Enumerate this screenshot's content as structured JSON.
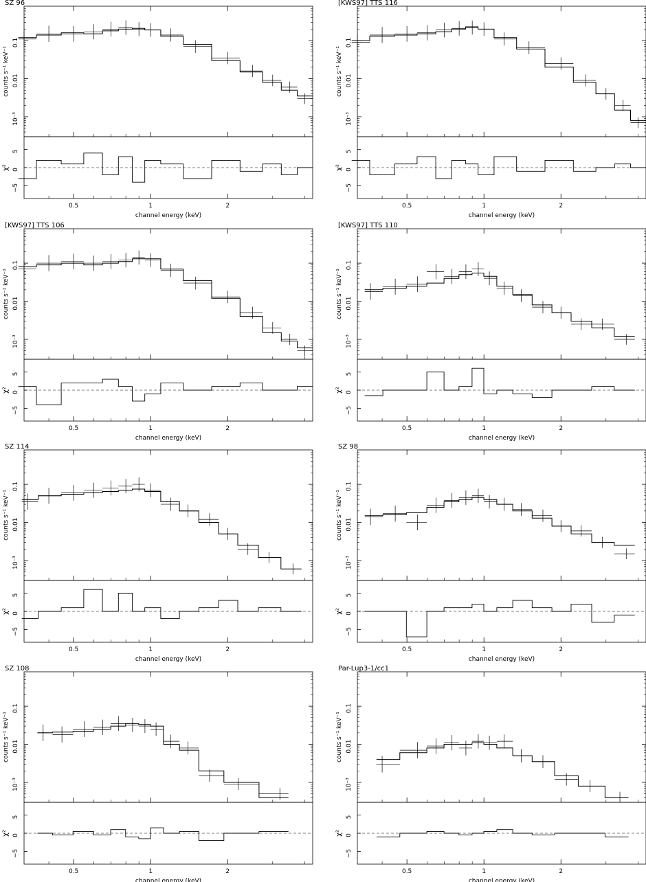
{
  "figure": {
    "xlabel": "channel energy (keV)",
    "ylabel_top": "counts s⁻¹ keV⁻¹",
    "ylabel_bottom": "χ²",
    "xticks": [
      "0.5",
      "1",
      "2"
    ],
    "yticks_top": [
      "10⁻³",
      "0.01",
      "0.1"
    ],
    "yticks_bottom": [
      "5",
      "0",
      "−5"
    ]
  },
  "chart_data": [
    {
      "type": "scatter",
      "title": "SZ 96",
      "x": [
        0.32,
        0.4,
        0.5,
        0.6,
        0.7,
        0.8,
        0.9,
        1.0,
        1.2,
        1.5,
        2.0,
        2.5,
        3.0,
        3.5,
        4.0
      ],
      "model": [
        0.12,
        0.14,
        0.16,
        0.15,
        0.18,
        0.2,
        0.21,
        0.19,
        0.13,
        0.08,
        0.03,
        0.015,
        0.008,
        0.005,
        0.0035
      ],
      "data": [
        0.11,
        0.15,
        0.15,
        0.17,
        0.2,
        0.22,
        0.2,
        0.19,
        0.14,
        0.07,
        0.035,
        0.016,
        0.009,
        0.006,
        0.003
      ],
      "residuals": [
        -3,
        2,
        1,
        4,
        -2,
        3,
        -4,
        2,
        1,
        -3,
        2,
        -1,
        1,
        -2,
        0
      ],
      "xlim": [
        0.32,
        4.3
      ],
      "ylim": [
        0.0003,
        0.8
      ],
      "res_ylim": [
        -8.5,
        8.5
      ]
    },
    {
      "type": "scatter",
      "title": "[KWS97] TTS 116",
      "x": [
        0.32,
        0.4,
        0.5,
        0.6,
        0.7,
        0.8,
        0.9,
        1.0,
        1.2,
        1.5,
        2.0,
        2.5,
        3.0,
        3.5,
        4.0
      ],
      "model": [
        0.1,
        0.13,
        0.14,
        0.15,
        0.17,
        0.2,
        0.23,
        0.2,
        0.12,
        0.06,
        0.02,
        0.008,
        0.004,
        0.0015,
        0.0008
      ],
      "data": [
        0.09,
        0.14,
        0.15,
        0.16,
        0.19,
        0.21,
        0.22,
        0.2,
        0.11,
        0.065,
        0.025,
        0.009,
        0.004,
        0.002,
        0.0007
      ],
      "residuals": [
        2,
        -2,
        1,
        3,
        -3,
        2,
        1,
        -2,
        3,
        -1,
        2,
        -1,
        0,
        1,
        0
      ],
      "xlim": [
        0.32,
        4.3
      ],
      "ylim": [
        0.0003,
        0.8
      ],
      "res_ylim": [
        -8.5,
        8.5
      ]
    },
    {
      "type": "scatter",
      "title": "[KWS97] TTS 106",
      "x": [
        0.32,
        0.4,
        0.5,
        0.6,
        0.7,
        0.8,
        0.9,
        1.0,
        1.2,
        1.5,
        2.0,
        2.5,
        3.0,
        3.5,
        4.0
      ],
      "model": [
        0.08,
        0.09,
        0.1,
        0.09,
        0.1,
        0.11,
        0.13,
        0.13,
        0.07,
        0.035,
        0.012,
        0.004,
        0.0015,
        0.0009,
        0.0006
      ],
      "data": [
        0.07,
        0.1,
        0.11,
        0.1,
        0.11,
        0.12,
        0.14,
        0.12,
        0.065,
        0.03,
        0.013,
        0.005,
        0.002,
        0.001,
        0.0005
      ],
      "residuals": [
        1,
        -4,
        2,
        2,
        3,
        1,
        -3,
        -1,
        2,
        0,
        1,
        2,
        0,
        0,
        1
      ],
      "xlim": [
        0.32,
        4.3
      ],
      "ylim": [
        0.0003,
        0.8
      ],
      "res_ylim": [
        -8.5,
        8.5
      ]
    },
    {
      "type": "scatter",
      "title": "[KWS97] TTS 110",
      "x": [
        0.36,
        0.45,
        0.55,
        0.65,
        0.75,
        0.85,
        0.95,
        1.05,
        1.2,
        1.4,
        1.7,
        2.0,
        2.4,
        2.9,
        3.6
      ],
      "model": [
        0.02,
        0.022,
        0.025,
        0.03,
        0.04,
        0.05,
        0.055,
        0.045,
        0.025,
        0.015,
        0.008,
        0.005,
        0.003,
        0.002,
        0.0012
      ],
      "data": [
        0.018,
        0.024,
        0.028,
        0.06,
        0.045,
        0.06,
        0.07,
        0.04,
        0.022,
        0.014,
        0.007,
        0.005,
        0.0025,
        0.0025,
        0.001
      ],
      "residuals": [
        -1.5,
        0,
        0,
        5,
        0,
        1,
        6,
        -1,
        0,
        -1,
        -2,
        0,
        0,
        1,
        0
      ],
      "xlim": [
        0.32,
        4.3
      ],
      "ylim": [
        0.0003,
        0.8
      ],
      "res_ylim": [
        -8.5,
        8.5
      ]
    },
    {
      "type": "scatter",
      "title": "SZ 114",
      "x": [
        0.33,
        0.4,
        0.5,
        0.6,
        0.7,
        0.8,
        0.9,
        1.0,
        1.2,
        1.4,
        1.7,
        2.0,
        2.4,
        2.9,
        3.6
      ],
      "model": [
        0.04,
        0.05,
        0.055,
        0.06,
        0.065,
        0.07,
        0.075,
        0.065,
        0.035,
        0.02,
        0.01,
        0.005,
        0.0025,
        0.0012,
        0.0006
      ],
      "data": [
        0.035,
        0.05,
        0.06,
        0.07,
        0.08,
        0.09,
        0.1,
        0.07,
        0.03,
        0.02,
        0.012,
        0.005,
        0.002,
        0.0012,
        0.0006
      ],
      "residuals": [
        -2,
        0,
        1,
        6,
        0,
        5,
        0,
        1,
        -2,
        0,
        1,
        3,
        0,
        1,
        0
      ],
      "xlim": [
        0.32,
        4.3
      ],
      "ylim": [
        0.0003,
        0.8
      ],
      "res_ylim": [
        -8.5,
        8.5
      ]
    },
    {
      "type": "scatter",
      "title": "SZ 98",
      "x": [
        0.36,
        0.45,
        0.55,
        0.65,
        0.75,
        0.85,
        0.95,
        1.05,
        1.2,
        1.4,
        1.7,
        2.0,
        2.4,
        2.9,
        3.6
      ],
      "model": [
        0.015,
        0.016,
        0.018,
        0.025,
        0.035,
        0.04,
        0.045,
        0.04,
        0.03,
        0.02,
        0.013,
        0.008,
        0.005,
        0.003,
        0.0025
      ],
      "data": [
        0.014,
        0.017,
        0.01,
        0.028,
        0.038,
        0.045,
        0.05,
        0.035,
        0.03,
        0.022,
        0.015,
        0.008,
        0.006,
        0.003,
        0.0015
      ],
      "residuals": [
        0,
        0,
        -7,
        0,
        1,
        1,
        2,
        0,
        1,
        3,
        1,
        0,
        2,
        -3,
        -1
      ],
      "xlim": [
        0.32,
        4.3
      ],
      "ylim": [
        0.0003,
        0.8
      ],
      "res_ylim": [
        -8.5,
        8.5
      ]
    },
    {
      "type": "scatter",
      "title": "SZ 108",
      "x": [
        0.38,
        0.45,
        0.55,
        0.65,
        0.75,
        0.85,
        0.95,
        1.05,
        1.2,
        1.4,
        1.7,
        2.2,
        3.2
      ],
      "model": [
        0.02,
        0.021,
        0.022,
        0.025,
        0.03,
        0.035,
        0.033,
        0.03,
        0.01,
        0.007,
        0.002,
        0.001,
        0.0004
      ],
      "data": [
        0.02,
        0.018,
        0.025,
        0.028,
        0.035,
        0.032,
        0.03,
        0.025,
        0.012,
        0.008,
        0.0015,
        0.0009,
        0.0005
      ],
      "residuals": [
        0,
        -0.5,
        0.5,
        -0.5,
        1,
        -1,
        -1.5,
        1.5,
        0,
        0.5,
        -2,
        0,
        0.5
      ],
      "xlim": [
        0.32,
        4.3
      ],
      "ylim": [
        0.0003,
        0.8
      ],
      "res_ylim": [
        -8.5,
        8.5
      ]
    },
    {
      "type": "scatter",
      "title": "Par-Lup3-1/cc1",
      "x": [
        0.4,
        0.55,
        0.65,
        0.75,
        0.85,
        0.95,
        1.05,
        1.2,
        1.4,
        1.7,
        2.1,
        2.6,
        3.4
      ],
      "model": [
        0.004,
        0.006,
        0.008,
        0.01,
        0.01,
        0.011,
        0.01,
        0.008,
        0.005,
        0.0035,
        0.0015,
        0.0008,
        0.0004
      ],
      "data": [
        0.003,
        0.007,
        0.009,
        0.011,
        0.008,
        0.012,
        0.011,
        0.012,
        0.005,
        0.0035,
        0.0012,
        0.0008,
        0.0004
      ],
      "residuals": [
        -1,
        0,
        0.5,
        0,
        -0.5,
        0,
        0.5,
        1,
        0,
        -0.5,
        0,
        0,
        -1
      ],
      "xlim": [
        0.32,
        4.3
      ],
      "ylim": [
        0.0003,
        0.8
      ],
      "res_ylim": [
        -8.5,
        8.5
      ]
    }
  ]
}
